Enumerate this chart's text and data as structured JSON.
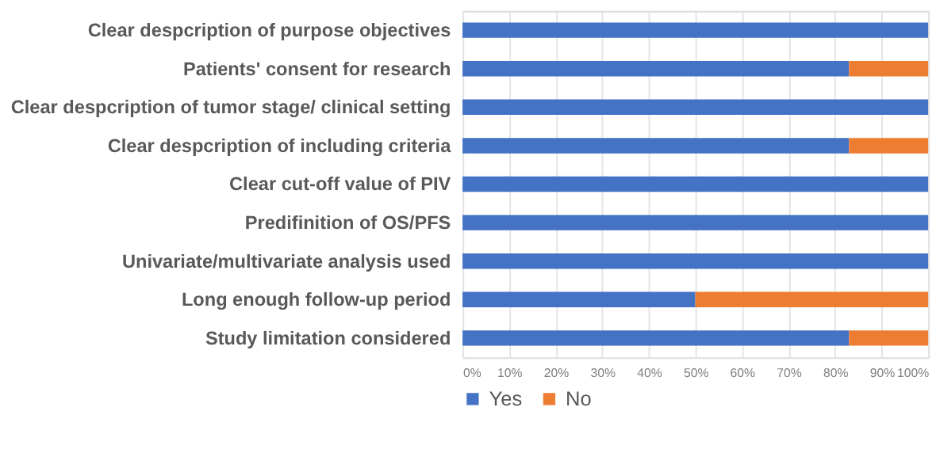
{
  "chart_data": {
    "type": "bar",
    "orientation": "horizontal",
    "stacked": true,
    "categories": [
      "Clear despcription of purpose objectives",
      "Patients' consent for research",
      "Clear despcription of tumor stage/ clinical setting",
      "Clear despcription of including criteria",
      "Clear cut-off value of PIV ",
      "Predifinition of OS/PFS",
      "Univariate/multivariate analysis used",
      "Long enough follow-up period",
      "Study limitation considered"
    ],
    "series": [
      {
        "name": "Yes",
        "color": "#4472c4",
        "values": [
          100,
          83,
          100,
          83,
          100,
          100,
          100,
          50,
          83
        ]
      },
      {
        "name": "No",
        "color": "#ed7d31",
        "values": [
          0,
          17,
          0,
          17,
          0,
          0,
          0,
          50,
          17
        ]
      }
    ],
    "xlim": [
      0,
      100
    ],
    "xticks": [
      {
        "value": 0,
        "label": "0%"
      },
      {
        "value": 10,
        "label": "10%"
      },
      {
        "value": 20,
        "label": "20%"
      },
      {
        "value": 30,
        "label": "30%"
      },
      {
        "value": 40,
        "label": "40%"
      },
      {
        "value": 50,
        "label": "50%"
      },
      {
        "value": 60,
        "label": "60%"
      },
      {
        "value": 70,
        "label": "70%"
      },
      {
        "value": 80,
        "label": "80%"
      },
      {
        "value": 90,
        "label": "90%"
      },
      {
        "value": 100,
        "label": "100%"
      }
    ],
    "grid": "x",
    "legend": "bottom left"
  }
}
